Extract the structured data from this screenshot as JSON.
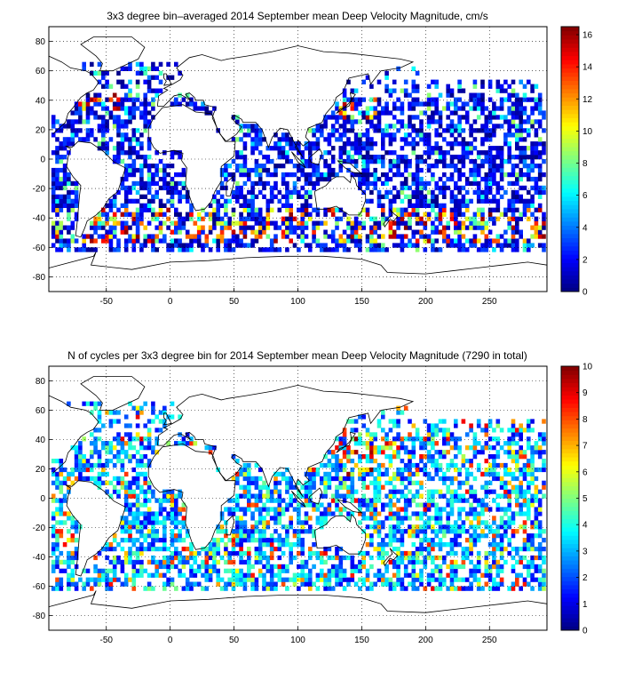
{
  "chart_data": [
    {
      "type": "heatmap",
      "title": "3x3 degree bin–averaged 2014 September mean Deep Velocity Magnitude, cm/s",
      "xlim": [
        -95,
        295
      ],
      "ylim": [
        -90,
        90
      ],
      "xticks": [
        -50,
        0,
        50,
        100,
        150,
        200,
        250
      ],
      "yticks": [
        80,
        60,
        40,
        20,
        0,
        -20,
        -40,
        -60,
        -80
      ],
      "grid": true,
      "bin_size_deg": 3,
      "colorbar": {
        "min": 0,
        "max": 16.5,
        "ticks": [
          0,
          2,
          4,
          6,
          8,
          10,
          12,
          14,
          16
        ],
        "colormap": "jet"
      },
      "value_bands": [
        {
          "range": [
            0,
            4
          ],
          "share": "most bins"
        },
        {
          "range": [
            8,
            16.5
          ],
          "share": "few bins, mainly near 40–60 S and western boundary currents"
        }
      ]
    },
    {
      "type": "heatmap",
      "title": "N of cycles per 3x3 degree bin for 2014 September mean Deep Velocity Magnitude (7290 in total)",
      "xlim": [
        -95,
        295
      ],
      "ylim": [
        -90,
        90
      ],
      "xticks": [
        -50,
        0,
        50,
        100,
        150,
        200,
        250
      ],
      "yticks": [
        80,
        60,
        40,
        20,
        0,
        -20,
        -40,
        -60,
        -80
      ],
      "grid": true,
      "bin_size_deg": 3,
      "total_cycles": 7290,
      "colorbar": {
        "min": 0,
        "max": 10,
        "ticks": [
          0,
          1,
          2,
          3,
          4,
          5,
          6,
          7,
          8,
          9,
          10
        ],
        "colormap": "jet"
      }
    }
  ]
}
